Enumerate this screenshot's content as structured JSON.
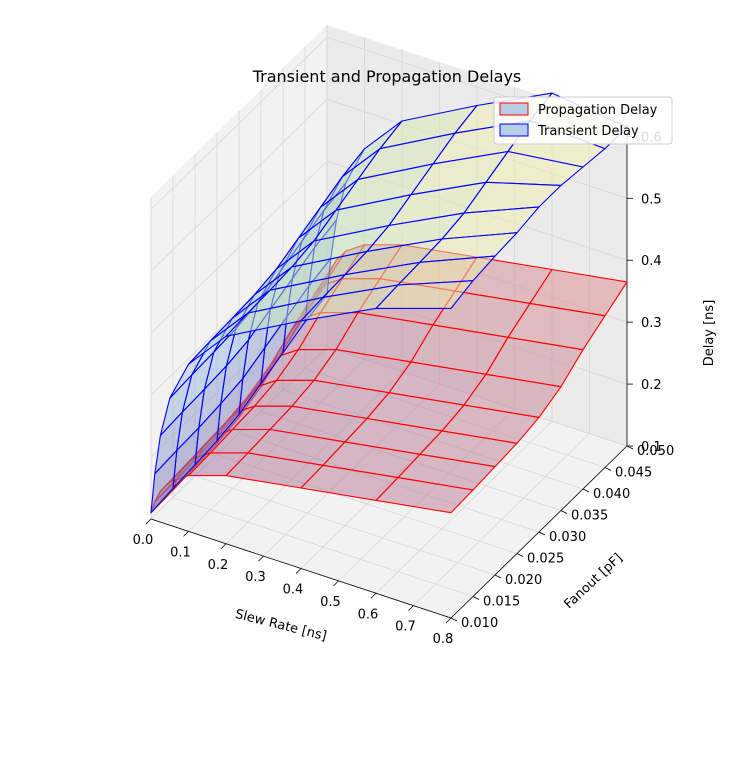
{
  "chart_data": {
    "type": "surface3d",
    "title": "Transient and Propagation Delays",
    "xlabel": "Slew Rate [ns]",
    "ylabel": "Fanout [pF]",
    "zlabel": "Delay [ns]",
    "xlim": [
      0.0,
      0.8
    ],
    "ylim": [
      0.01,
      0.05
    ],
    "zlim": [
      0.1,
      0.62
    ],
    "xticks": [
      "0.0",
      "0.1",
      "0.2",
      "0.3",
      "0.4",
      "0.5",
      "0.6",
      "0.7",
      "0.8"
    ],
    "yticks": [
      "0.010",
      "0.015",
      "0.020",
      "0.025",
      "0.030",
      "0.035",
      "0.040",
      "0.045",
      "0.050"
    ],
    "zticks": [
      "0.1",
      "0.2",
      "0.3",
      "0.4",
      "0.5",
      "0.6"
    ],
    "legend_position": "top-right",
    "slew": [
      0.0,
      0.01,
      0.025,
      0.05,
      0.1,
      0.2,
      0.4,
      0.6,
      0.8
    ],
    "fanout": [
      0.01,
      0.015,
      0.02,
      0.025,
      0.03,
      0.035,
      0.04,
      0.045,
      0.05
    ],
    "series": [
      {
        "name": "Propagation Delay",
        "edge_color": "#ff0000",
        "face_color": "#b8cde6",
        "z": [
          [
            0.11,
            0.112,
            0.115,
            0.118,
            0.125,
            0.14,
            0.165,
            0.185,
            0.205
          ],
          [
            0.13,
            0.132,
            0.135,
            0.138,
            0.145,
            0.16,
            0.185,
            0.205,
            0.225
          ],
          [
            0.15,
            0.152,
            0.155,
            0.158,
            0.165,
            0.18,
            0.205,
            0.225,
            0.245
          ],
          [
            0.17,
            0.172,
            0.175,
            0.178,
            0.185,
            0.2,
            0.225,
            0.245,
            0.265
          ],
          [
            0.19,
            0.192,
            0.195,
            0.198,
            0.205,
            0.22,
            0.245,
            0.265,
            0.285
          ],
          [
            0.21,
            0.212,
            0.215,
            0.218,
            0.225,
            0.24,
            0.265,
            0.285,
            0.305
          ],
          [
            0.23,
            0.232,
            0.235,
            0.238,
            0.245,
            0.26,
            0.285,
            0.305,
            0.325
          ],
          [
            0.25,
            0.252,
            0.255,
            0.258,
            0.265,
            0.28,
            0.305,
            0.325,
            0.345
          ],
          [
            0.27,
            0.272,
            0.275,
            0.278,
            0.285,
            0.3,
            0.325,
            0.345,
            0.365
          ]
        ]
      },
      {
        "name": "Transient Delay",
        "edge_color": "#0000ff",
        "face_color": "#b8cde6",
        "z": [
          [
            0.11,
            0.115,
            0.118,
            0.122,
            0.13,
            0.145,
            0.16,
            0.175,
            0.185
          ],
          [
            0.175,
            0.178,
            0.18,
            0.184,
            0.19,
            0.205,
            0.22,
            0.235,
            0.245
          ],
          [
            0.24,
            0.243,
            0.245,
            0.248,
            0.255,
            0.27,
            0.285,
            0.3,
            0.31
          ],
          [
            0.305,
            0.308,
            0.31,
            0.313,
            0.32,
            0.335,
            0.35,
            0.365,
            0.375
          ],
          [
            0.37,
            0.373,
            0.375,
            0.378,
            0.385,
            0.4,
            0.415,
            0.43,
            0.44
          ],
          [
            0.435,
            0.438,
            0.44,
            0.443,
            0.45,
            0.465,
            0.48,
            0.495,
            0.505
          ],
          [
            0.5,
            0.503,
            0.505,
            0.508,
            0.515,
            0.53,
            0.545,
            0.56,
            0.57
          ],
          [
            0.56,
            0.563,
            0.565,
            0.568,
            0.575,
            0.59,
            0.605,
            0.62,
            0.63
          ],
          [
            0.6,
            0.61,
            0.615,
            0.618,
            0.625,
            0.625,
            0.62,
            0.615,
            0.615
          ]
        ]
      }
    ]
  }
}
